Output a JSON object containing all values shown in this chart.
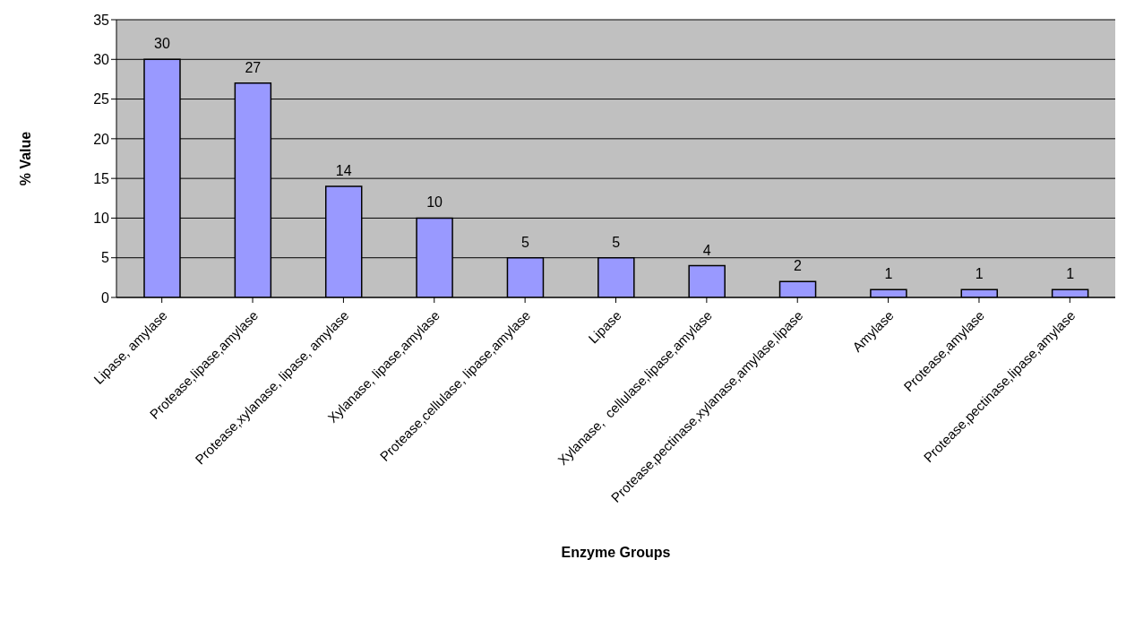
{
  "chart_data": {
    "type": "bar",
    "xlabel": "Enzyme Groups",
    "ylabel": "% Value",
    "categories": [
      "Lipase, amylase",
      "Protease,lipase,amylase",
      "Protease,xylanase, lipase, amylase",
      "Xylanase, lipase,amylase",
      "Protease,cellulase, lipase,amylase",
      "Lipase",
      "Xylanase,  cellulase,lipase,amylase",
      "Protease,pectinase,xylanase,amylase,lipase",
      "Amylase",
      "Protease,amylase",
      "Protease,pectinase,lipase,amylase"
    ],
    "values": [
      30,
      27,
      14,
      10,
      5,
      5,
      4,
      2,
      1,
      1,
      1
    ],
    "color": "#9999ff",
    "ylim": [
      0,
      35
    ],
    "yticks": [
      0,
      5,
      10,
      15,
      20,
      25,
      30,
      35
    ],
    "grid": "y",
    "data_labels": true
  }
}
